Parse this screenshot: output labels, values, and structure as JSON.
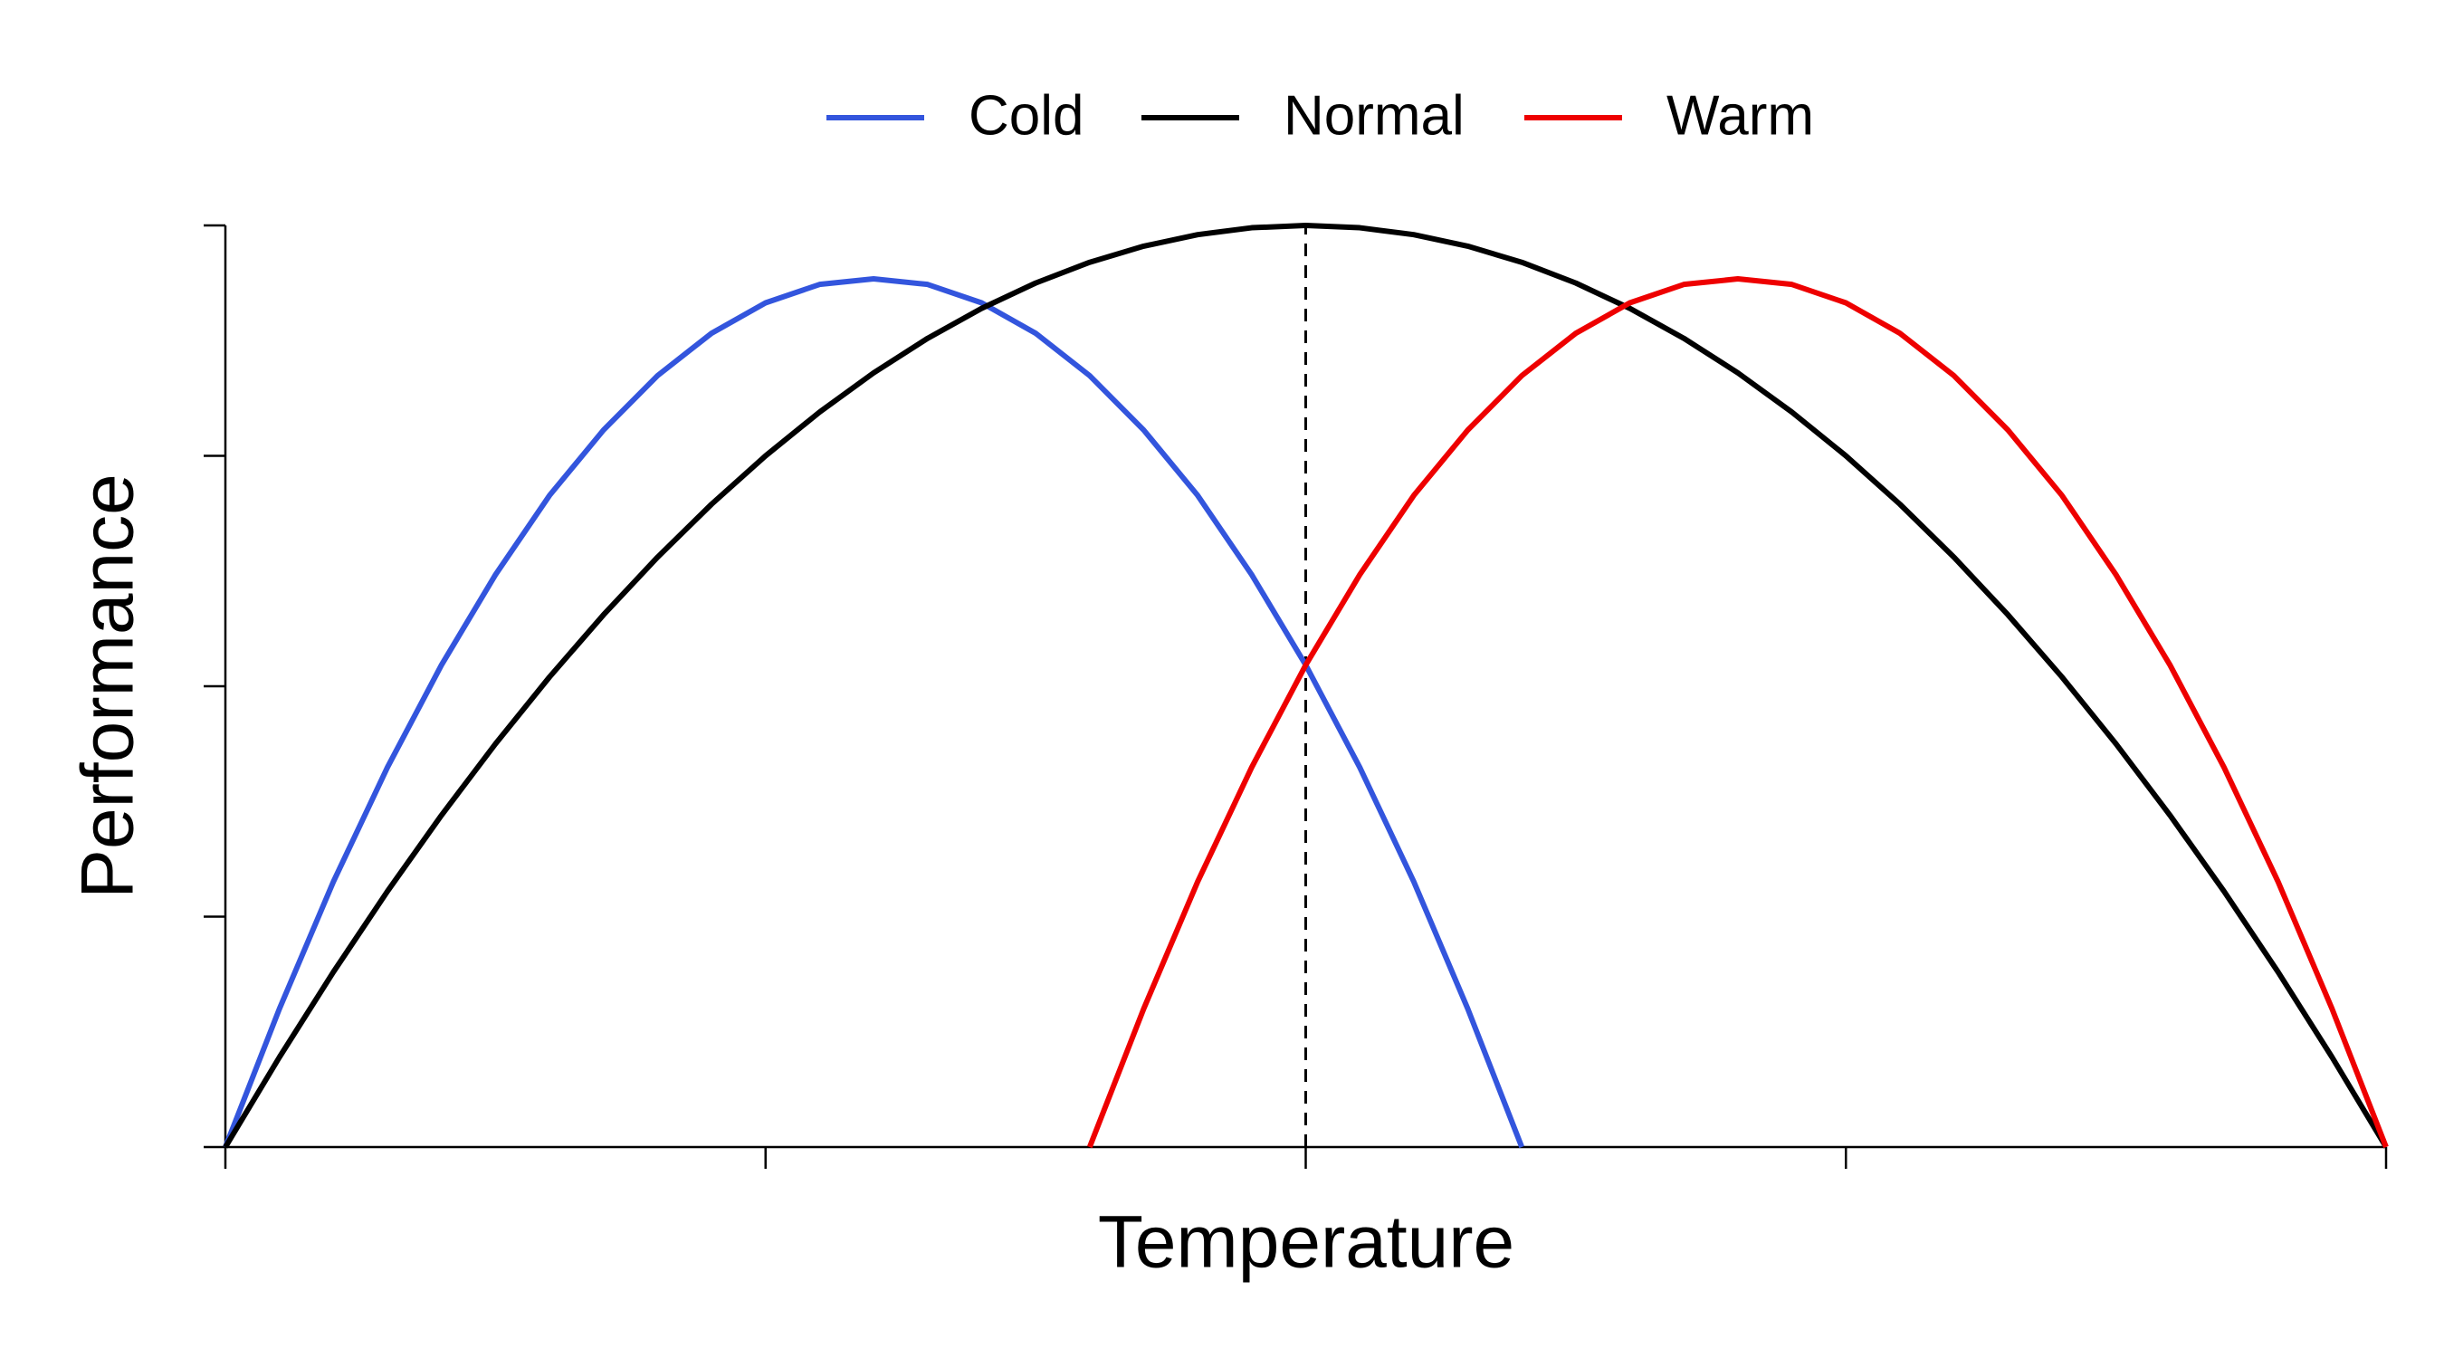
{
  "chart_data": {
    "type": "line",
    "x_label": "Temperature",
    "y_label": "Performance",
    "x": [
      0,
      0.025,
      0.05,
      0.075,
      0.1,
      0.125,
      0.15,
      0.175,
      0.2,
      0.225,
      0.25,
      0.275,
      0.3,
      0.325,
      0.35,
      0.375,
      0.4,
      0.425,
      0.45,
      0.475,
      0.5,
      0.525,
      0.55,
      0.575,
      0.6,
      0.625,
      0.65,
      0.675,
      0.7,
      0.725,
      0.75,
      0.775,
      0.8,
      0.825,
      0.85,
      0.875,
      0.9,
      0.925,
      0.95,
      0.975,
      1
    ],
    "series": [
      {
        "name": "Cold",
        "color": "#3355dd",
        "values": [
          0,
          0.15,
          0.288,
          0.412,
          0.523,
          0.621,
          0.707,
          0.778,
          0.837,
          0.883,
          0.916,
          0.936,
          0.942,
          0.936,
          0.916,
          0.883,
          0.837,
          0.778,
          0.707,
          0.621,
          0.523,
          0.412,
          0.288,
          0.15,
          0,
          null,
          null,
          null,
          null,
          null,
          null,
          null,
          null,
          null,
          null,
          null,
          null,
          null,
          null,
          null,
          null
        ]
      },
      {
        "name": "Normal",
        "color": "#000000",
        "values": [
          0,
          0.0975,
          0.19,
          0.2775,
          0.36,
          0.4375,
          0.51,
          0.5775,
          0.64,
          0.6975,
          0.75,
          0.7975,
          0.84,
          0.8775,
          0.91,
          0.9375,
          0.96,
          0.9775,
          0.99,
          0.9975,
          1,
          0.9975,
          0.99,
          0.9775,
          0.96,
          0.9375,
          0.91,
          0.8775,
          0.84,
          0.7975,
          0.75,
          0.6975,
          0.64,
          0.5775,
          0.51,
          0.4375,
          0.36,
          0.2775,
          0.19,
          0.0975,
          0
        ]
      },
      {
        "name": "Warm",
        "color": "#ee0000",
        "values": [
          null,
          null,
          null,
          null,
          null,
          null,
          null,
          null,
          null,
          null,
          null,
          null,
          null,
          null,
          null,
          null,
          0,
          0.15,
          0.288,
          0.412,
          0.523,
          0.621,
          0.707,
          0.778,
          0.837,
          0.883,
          0.916,
          0.936,
          0.942,
          0.936,
          0.916,
          0.883,
          0.837,
          0.778,
          0.707,
          0.621,
          0.523,
          0.412,
          0.288,
          0.15,
          0
        ]
      }
    ],
    "vline": 0.5,
    "xlim": [
      0,
      1
    ],
    "xticks": [
      0,
      0.25,
      0.5,
      0.75,
      1
    ],
    "ylim": [
      0,
      1
    ],
    "yticks": [
      0,
      0.25,
      0.5,
      0.75,
      1
    ],
    "legend": "top"
  }
}
